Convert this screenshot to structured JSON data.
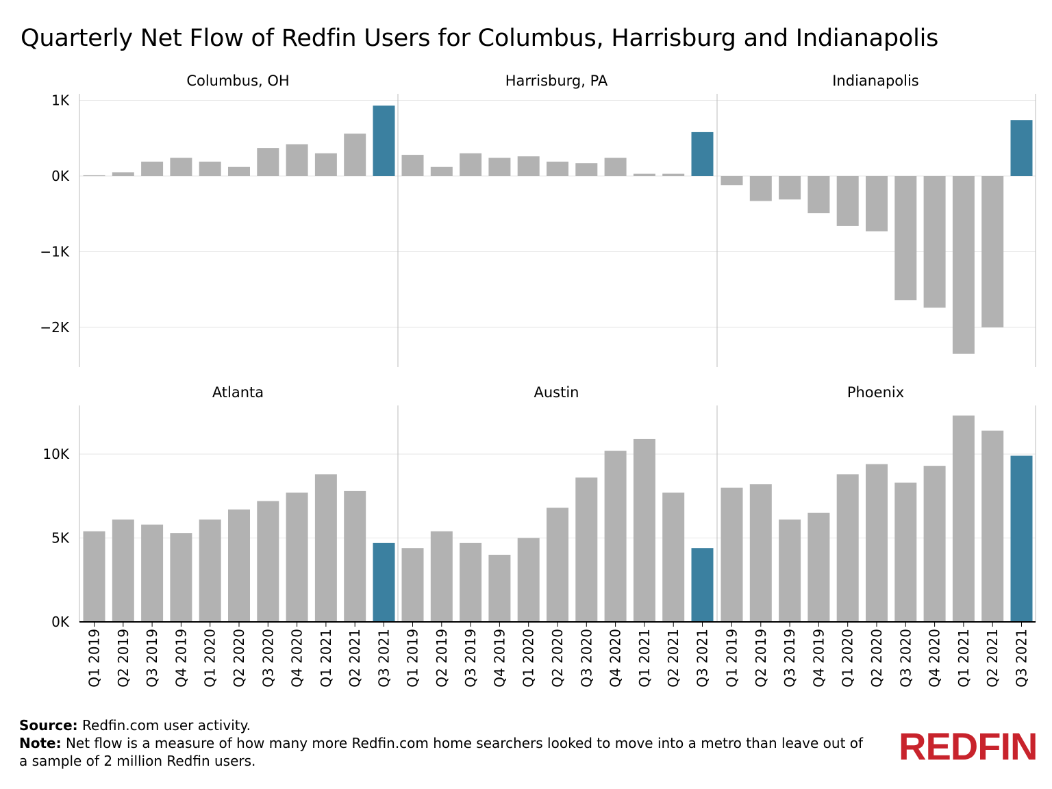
{
  "title": "Quarterly Net Flow of Redfin Users for Columbus, Harrisburg and Indianapolis",
  "colors": {
    "bar": "#b2b2b2",
    "highlight": "#3b80a0",
    "grid": "#e6e6e6",
    "axis": "#000000",
    "divider": "#bbbbbb"
  },
  "footer": {
    "source_label": "Source:",
    "source_text": "Redfin.com user activity.",
    "note_label": "Note:",
    "note_text": "Net flow is a measure of how many more Redfin.com home searchers looked to move into a metro than leave out of a sample of 2 million Redfin users."
  },
  "logo": {
    "text": "REDFIN"
  },
  "chart_data": [
    {
      "type": "bar",
      "row": "top",
      "y_ticks": [
        1000,
        0,
        -1000,
        -2000
      ],
      "y_tick_labels": [
        "1K",
        "0K",
        "−1K",
        "−2K"
      ],
      "ylim": [
        -2500,
        1000
      ],
      "categories": [
        "Q1 2019",
        "Q2 2019",
        "Q3 2019",
        "Q4 2019",
        "Q1 2020",
        "Q2 2020",
        "Q3 2020",
        "Q4 2020",
        "Q1 2021",
        "Q2 2021",
        "Q3 2021"
      ],
      "highlight_last": true,
      "panels": [
        {
          "name": "Columbus, OH",
          "values": [
            10,
            50,
            190,
            240,
            190,
            120,
            370,
            420,
            300,
            560,
            930
          ]
        },
        {
          "name": "Harrisburg, PA",
          "values": [
            280,
            120,
            300,
            240,
            260,
            190,
            170,
            240,
            30,
            30,
            580
          ]
        },
        {
          "name": "Indianapolis",
          "values": [
            -120,
            -330,
            -310,
            -490,
            -660,
            -730,
            -1640,
            -1740,
            -2350,
            -2000,
            740
          ]
        }
      ]
    },
    {
      "type": "bar",
      "row": "bottom",
      "y_ticks": [
        10000,
        5000,
        0
      ],
      "y_tick_labels": [
        "10K",
        "5K",
        "0K"
      ],
      "ylim": [
        0,
        12500
      ],
      "categories": [
        "Q1 2019",
        "Q2 2019",
        "Q3 2019",
        "Q4 2019",
        "Q1 2020",
        "Q2 2020",
        "Q3 2020",
        "Q4 2020",
        "Q1 2021",
        "Q2 2021",
        "Q3 2021"
      ],
      "highlight_last": true,
      "panels": [
        {
          "name": "Atlanta",
          "values": [
            5400,
            6100,
            5800,
            5300,
            6100,
            6700,
            7200,
            7700,
            8800,
            7800,
            4700
          ]
        },
        {
          "name": "Austin",
          "values": [
            4400,
            5400,
            4700,
            4000,
            5000,
            6800,
            8600,
            10200,
            10900,
            7700,
            4400
          ]
        },
        {
          "name": "Phoenix",
          "values": [
            8000,
            8200,
            6100,
            6500,
            8800,
            9400,
            8300,
            9300,
            12300,
            11400,
            9900
          ]
        }
      ]
    }
  ]
}
